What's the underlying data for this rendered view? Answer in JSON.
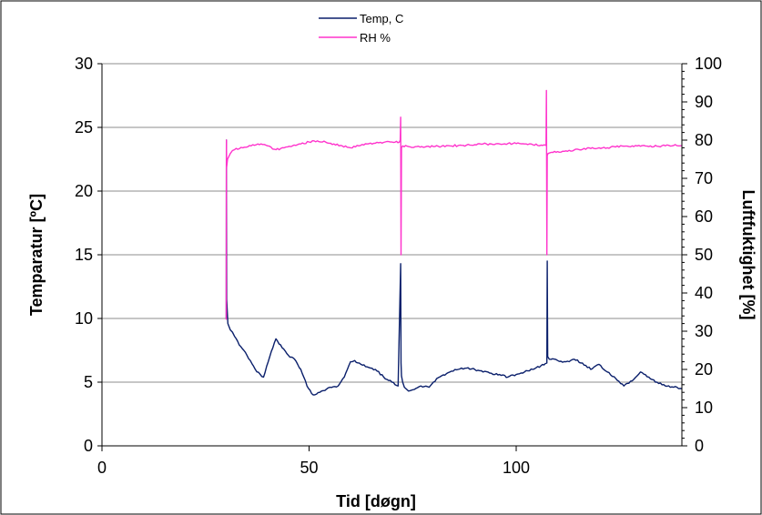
{
  "chart_data": {
    "type": "line",
    "xlabel": "Tid [døgn]",
    "ylabel": "Temparatur [ºC]",
    "y2label": "Luftfuktighet [%]",
    "xlim": [
      0,
      140
    ],
    "ylim": [
      0,
      30
    ],
    "y2lim": [
      0,
      100
    ],
    "x_ticks": [
      "0",
      "50",
      "100"
    ],
    "y_ticks": [
      "0",
      "5",
      "10",
      "15",
      "20",
      "25",
      "30"
    ],
    "y2_ticks": [
      "0",
      "10",
      "20",
      "30",
      "40",
      "50",
      "60",
      "70",
      "80",
      "90",
      "100"
    ],
    "grid": true,
    "legend_position": "top-center",
    "series": [
      {
        "name": "Temp, C",
        "axis": "left",
        "color": "#0a1f6b",
        "x": [
          30,
          30.05,
          30.1,
          30.4,
          31,
          32,
          33.5,
          35,
          37,
          39,
          40.5,
          42,
          43.5,
          45,
          46.5,
          48,
          49.5,
          51,
          53,
          55,
          57,
          58.5,
          60,
          61,
          62.5,
          64,
          66,
          68,
          70,
          71.5,
          72.1,
          72.2,
          72.3,
          72.6,
          73,
          74,
          75,
          77,
          79,
          80,
          82,
          84,
          86,
          88,
          90,
          92,
          94,
          96,
          98,
          100,
          102,
          104,
          106,
          107.4,
          107.5,
          107.6,
          108,
          110,
          112,
          114,
          116,
          118,
          120,
          122,
          124,
          126,
          128,
          130,
          132,
          134,
          136,
          138,
          140
        ],
        "values": [
          10,
          24,
          11.5,
          9.6,
          9.1,
          8.6,
          7.8,
          7.1,
          6.0,
          5.4,
          7.0,
          8.4,
          7.7,
          7.1,
          6.8,
          6.0,
          4.7,
          4.0,
          4.3,
          4.6,
          4.7,
          5.4,
          6.6,
          6.7,
          6.4,
          6.2,
          6.0,
          5.4,
          5.0,
          4.7,
          14.3,
          6.5,
          5.5,
          5.0,
          4.6,
          4.3,
          4.4,
          4.7,
          4.6,
          5.0,
          5.5,
          5.8,
          6.0,
          6.1,
          6.0,
          5.8,
          5.7,
          5.6,
          5.4,
          5.6,
          5.8,
          6.0,
          6.3,
          6.5,
          14.5,
          7.0,
          6.8,
          6.7,
          6.6,
          6.8,
          6.5,
          6.0,
          6.4,
          5.8,
          5.3,
          4.7,
          5.1,
          5.8,
          5.4,
          5.0,
          4.7,
          4.6,
          4.5
        ]
      },
      {
        "name": "RH %",
        "axis": "right",
        "color": "#ff33cc",
        "x": [
          30,
          30.05,
          30.1,
          30.3,
          31,
          32,
          34,
          36,
          38,
          40,
          42,
          44,
          46,
          48,
          50,
          52,
          54,
          56,
          58,
          60,
          62,
          64,
          66,
          68,
          70,
          71.8,
          72.0,
          72.1,
          72.2,
          72.3,
          72.6,
          74,
          76,
          78,
          80,
          82,
          84,
          86,
          88,
          90,
          92,
          94,
          96,
          98,
          100,
          102,
          104,
          106,
          107.2,
          107.3,
          107.4,
          107.5,
          107.7,
          108.5,
          110,
          112,
          114,
          116,
          118,
          120,
          122,
          124,
          126,
          128,
          130,
          132,
          134,
          136,
          138,
          140
        ],
        "values": [
          33,
          80,
          73,
          75,
          76.5,
          77.5,
          78.0,
          78.5,
          78.8,
          78.5,
          77.5,
          78.0,
          78.5,
          79.0,
          79.5,
          79.8,
          79.5,
          79.0,
          78.5,
          78.0,
          78.5,
          79.0,
          79.2,
          79.4,
          79.5,
          79.5,
          80.0,
          86.0,
          50.0,
          78.0,
          78.5,
          78.3,
          78.3,
          78.2,
          78.3,
          78.4,
          78.5,
          78.6,
          78.7,
          78.8,
          79.0,
          79.0,
          79.0,
          79.1,
          79.1,
          79.0,
          78.8,
          78.7,
          78.6,
          93.0,
          50.0,
          76.0,
          76.5,
          76.8,
          77.0,
          77.2,
          77.4,
          77.6,
          77.8,
          78.0,
          78.0,
          78.2,
          78.4,
          78.5,
          78.4,
          78.3,
          78.4,
          78.5,
          78.6,
          78.6
        ]
      }
    ]
  }
}
